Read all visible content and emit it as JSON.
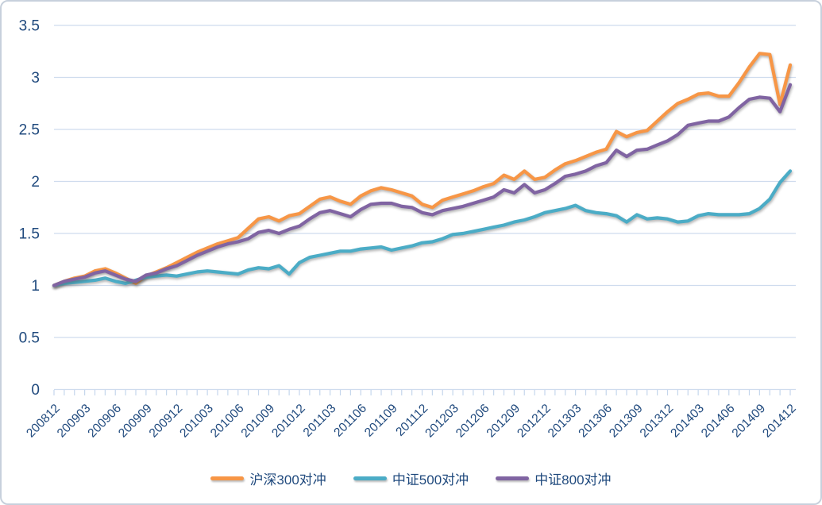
{
  "chart_data": {
    "type": "line",
    "title": "",
    "xlabel": "",
    "ylabel": "",
    "grid": true,
    "legend_position": "bottom",
    "ylim": [
      0,
      3.5
    ],
    "y_ticks": [
      0,
      0.5,
      1,
      1.5,
      2,
      2.5,
      3,
      3.5
    ],
    "y_tick_labels": [
      "0",
      "0.5",
      "1",
      "1.5",
      "2",
      "2.5",
      "3",
      "3.5"
    ],
    "x": [
      "200812",
      "200901",
      "200902",
      "200903",
      "200904",
      "200905",
      "200906",
      "200907",
      "200908",
      "200909",
      "200910",
      "200911",
      "200912",
      "201001",
      "201002",
      "201003",
      "201004",
      "201005",
      "201006",
      "201007",
      "201008",
      "201009",
      "201010",
      "201011",
      "201012",
      "201101",
      "201102",
      "201103",
      "201104",
      "201105",
      "201106",
      "201107",
      "201108",
      "201109",
      "201110",
      "201111",
      "201112",
      "201201",
      "201202",
      "201203",
      "201204",
      "201205",
      "201206",
      "201207",
      "201208",
      "201209",
      "201210",
      "201211",
      "201212",
      "201301",
      "201302",
      "201303",
      "201304",
      "201305",
      "201306",
      "201307",
      "201308",
      "201309",
      "201310",
      "201311",
      "201312",
      "201401",
      "201402",
      "201403",
      "201404",
      "201405",
      "201406",
      "201407",
      "201408",
      "201409",
      "201410",
      "201411",
      "201412"
    ],
    "x_tick_labels": [
      "200812",
      "200903",
      "200906",
      "200909",
      "200912",
      "201003",
      "201006",
      "201009",
      "201012",
      "201103",
      "201106",
      "201109",
      "201112",
      "201203",
      "201206",
      "201209",
      "201212",
      "201303",
      "201306",
      "201309",
      "201312",
      "201403",
      "201406",
      "201409",
      "201412"
    ],
    "series": [
      {
        "key": "hs300-hedge",
        "name": "沪深300对冲",
        "color": "#F79646",
        "values": [
          1.0,
          1.04,
          1.07,
          1.09,
          1.14,
          1.16,
          1.12,
          1.07,
          1.02,
          1.09,
          1.13,
          1.17,
          1.22,
          1.27,
          1.32,
          1.36,
          1.4,
          1.43,
          1.46,
          1.55,
          1.64,
          1.66,
          1.62,
          1.67,
          1.69,
          1.76,
          1.83,
          1.85,
          1.81,
          1.78,
          1.86,
          1.91,
          1.94,
          1.92,
          1.89,
          1.86,
          1.78,
          1.75,
          1.82,
          1.85,
          1.88,
          1.91,
          1.95,
          1.98,
          2.06,
          2.02,
          2.1,
          2.02,
          2.04,
          2.11,
          2.17,
          2.2,
          2.24,
          2.28,
          2.31,
          2.48,
          2.43,
          2.47,
          2.49,
          2.58,
          2.67,
          2.75,
          2.79,
          2.84,
          2.85,
          2.82,
          2.82,
          2.95,
          3.1,
          3.23,
          3.22,
          2.74,
          3.12
        ]
      },
      {
        "key": "zz500-hedge",
        "name": "中证500对冲",
        "color": "#4BACC6",
        "values": [
          1.0,
          1.02,
          1.03,
          1.04,
          1.05,
          1.07,
          1.04,
          1.02,
          1.05,
          1.08,
          1.09,
          1.1,
          1.09,
          1.11,
          1.13,
          1.14,
          1.13,
          1.12,
          1.11,
          1.15,
          1.17,
          1.16,
          1.19,
          1.11,
          1.22,
          1.27,
          1.29,
          1.31,
          1.33,
          1.33,
          1.35,
          1.36,
          1.37,
          1.34,
          1.36,
          1.38,
          1.41,
          1.42,
          1.45,
          1.49,
          1.5,
          1.52,
          1.54,
          1.56,
          1.58,
          1.61,
          1.63,
          1.66,
          1.7,
          1.72,
          1.74,
          1.77,
          1.72,
          1.7,
          1.69,
          1.67,
          1.61,
          1.68,
          1.64,
          1.65,
          1.64,
          1.61,
          1.62,
          1.67,
          1.69,
          1.68,
          1.68,
          1.68,
          1.69,
          1.74,
          1.83,
          1.99,
          2.1
        ]
      },
      {
        "key": "zz800-hedge",
        "name": "中证800对冲",
        "color": "#8064A2",
        "values": [
          1.0,
          1.04,
          1.06,
          1.08,
          1.12,
          1.14,
          1.1,
          1.06,
          1.04,
          1.1,
          1.12,
          1.16,
          1.19,
          1.24,
          1.29,
          1.33,
          1.37,
          1.4,
          1.42,
          1.45,
          1.51,
          1.53,
          1.5,
          1.54,
          1.57,
          1.64,
          1.7,
          1.72,
          1.69,
          1.66,
          1.73,
          1.78,
          1.79,
          1.79,
          1.76,
          1.75,
          1.7,
          1.68,
          1.72,
          1.74,
          1.76,
          1.79,
          1.82,
          1.85,
          1.92,
          1.89,
          1.97,
          1.89,
          1.92,
          1.98,
          2.05,
          2.07,
          2.1,
          2.15,
          2.18,
          2.3,
          2.24,
          2.3,
          2.31,
          2.35,
          2.39,
          2.45,
          2.54,
          2.56,
          2.58,
          2.58,
          2.62,
          2.71,
          2.79,
          2.81,
          2.8,
          2.67,
          2.93
        ]
      }
    ]
  },
  "colors": {
    "axis_text": "#1F497D",
    "gridline": "#CFDCEE",
    "tick": "#C5D6EC",
    "frame_border": "#C7D0DC",
    "background": "#FFFFFF"
  }
}
